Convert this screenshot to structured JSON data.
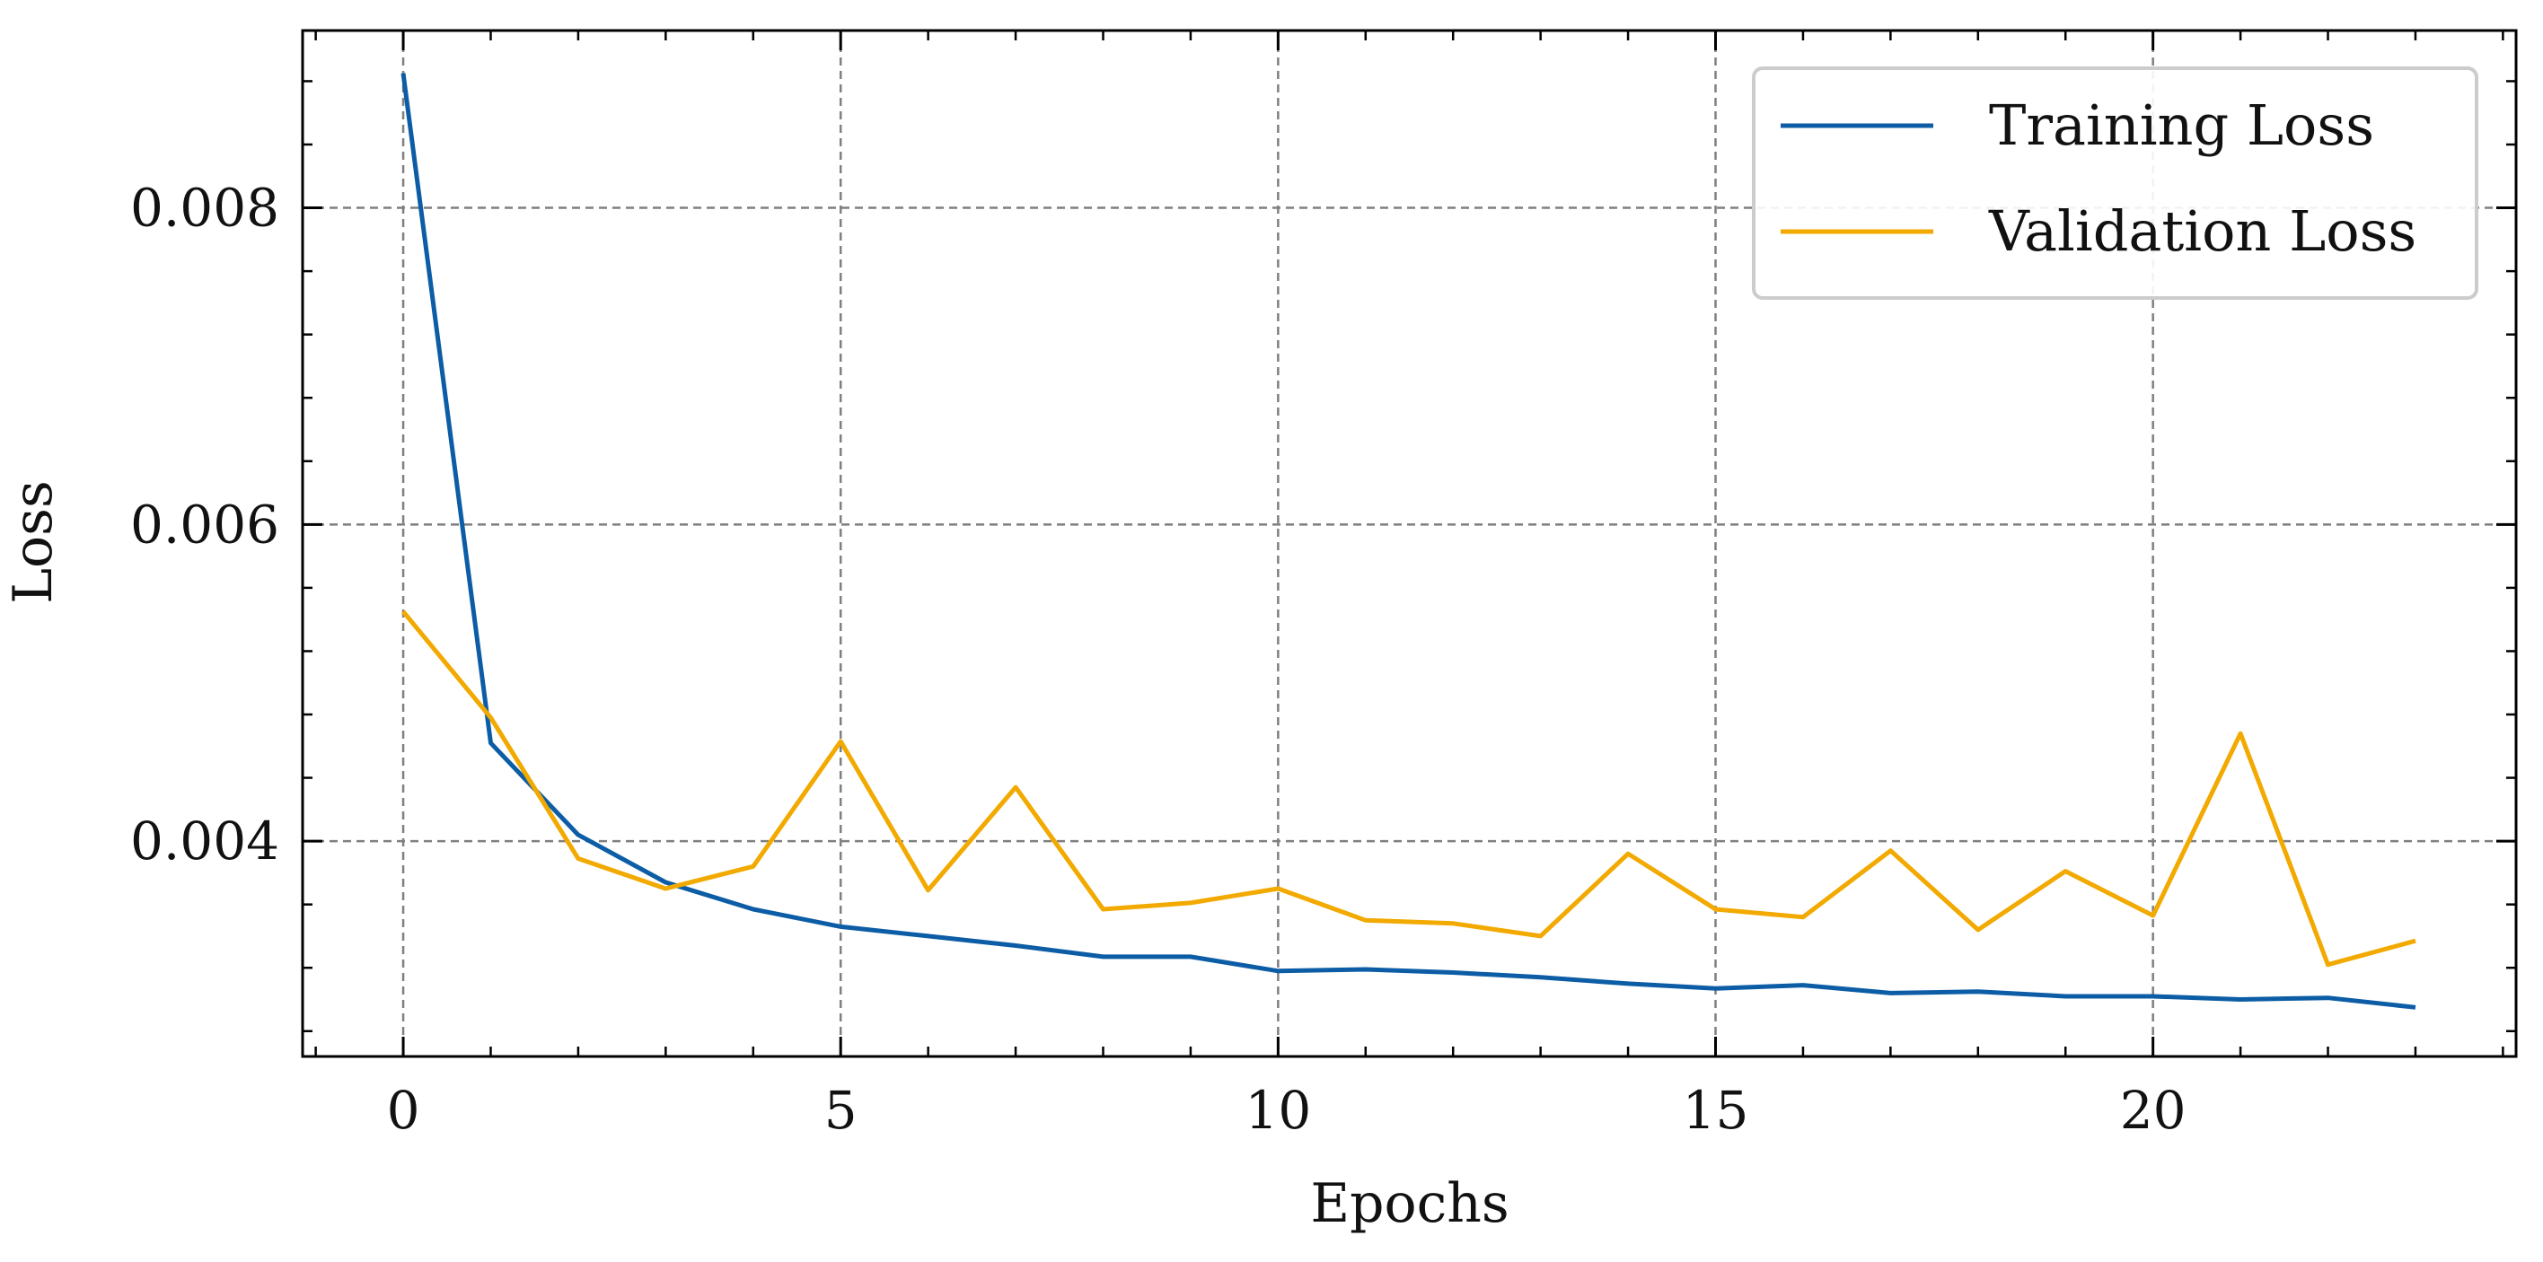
{
  "chart_data": {
    "type": "line",
    "title": "",
    "xlabel": "Epochs",
    "ylabel": "Loss",
    "xlim": [
      -1.15,
      24.15
    ],
    "ylim": [
      0.00264,
      0.00912
    ],
    "x_ticks": [
      0,
      5,
      10,
      15,
      20
    ],
    "x_tick_labels": [
      "0",
      "5",
      "10",
      "15",
      "20"
    ],
    "y_ticks": [
      0.004,
      0.006,
      0.008
    ],
    "y_tick_labels": [
      "0.004",
      "0.006",
      "0.008"
    ],
    "grid": true,
    "legend_position": "top-right",
    "x": [
      0,
      1,
      2,
      3,
      4,
      5,
      6,
      7,
      8,
      9,
      10,
      11,
      12,
      13,
      14,
      15,
      16,
      17,
      18,
      19,
      20,
      21,
      22,
      23
    ],
    "series": [
      {
        "name": "Training Loss",
        "color": "#0C5DA5",
        "values": [
          0.00885,
          0.00462,
          0.00404,
          0.00374,
          0.00357,
          0.00346,
          0.0034,
          0.00334,
          0.00327,
          0.00327,
          0.00318,
          0.00319,
          0.00317,
          0.00314,
          0.0031,
          0.00307,
          0.00309,
          0.00304,
          0.00305,
          0.00302,
          0.00302,
          0.003,
          0.00301,
          0.00295
        ]
      },
      {
        "name": "Validation Loss",
        "color": "#F2A900",
        "values": [
          0.00545,
          0.00478,
          0.00389,
          0.0037,
          0.00384,
          0.00463,
          0.00369,
          0.00434,
          0.00357,
          0.00361,
          0.0037,
          0.0035,
          0.00348,
          0.0034,
          0.00392,
          0.00357,
          0.00352,
          0.00394,
          0.00344,
          0.00381,
          0.00353,
          0.00468,
          0.00322,
          0.00337
        ]
      }
    ]
  }
}
